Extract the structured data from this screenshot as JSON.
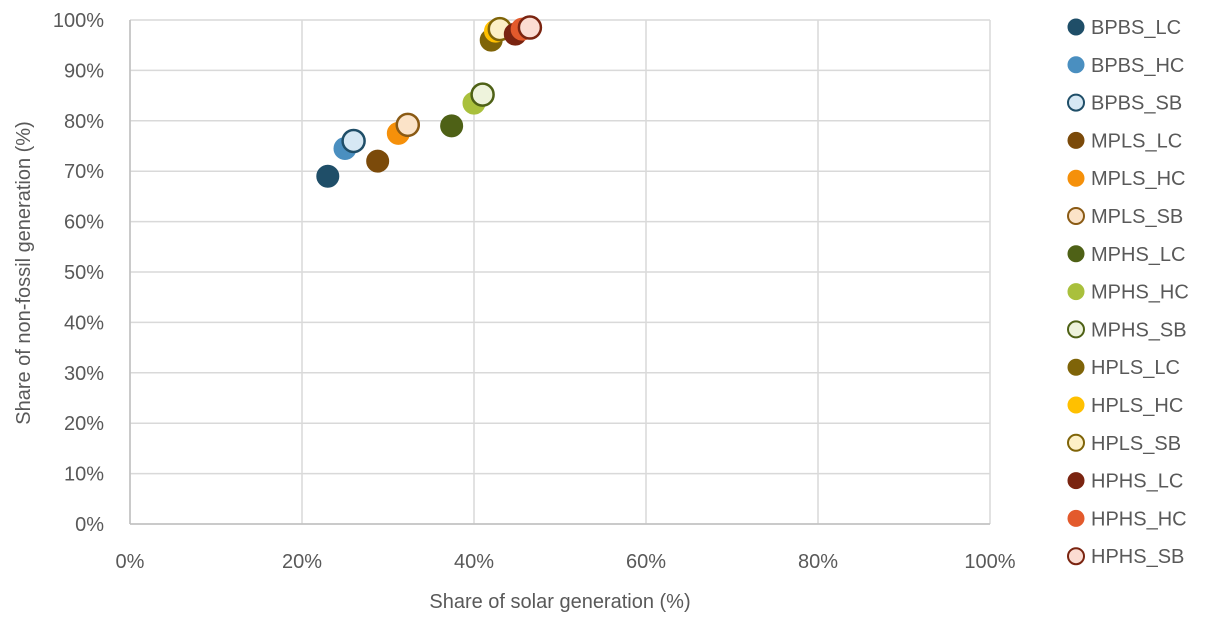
{
  "chart_data": {
    "type": "scatter",
    "title": "",
    "xlabel": "Share of solar generation (%)",
    "ylabel": "Share of non-fossil generation (%)",
    "xlim": [
      0,
      100
    ],
    "ylim": [
      0,
      100
    ],
    "x_ticks": [
      "0%",
      "20%",
      "40%",
      "60%",
      "80%",
      "100%"
    ],
    "y_ticks": [
      "0%",
      "10%",
      "20%",
      "30%",
      "40%",
      "50%",
      "60%",
      "70%",
      "80%",
      "90%",
      "100%"
    ],
    "grid": true,
    "legend_position": "right",
    "series": [
      {
        "name": "BPBS_LC",
        "x": 23.0,
        "y": 69.0,
        "color": "#1f4e68",
        "hollow": false
      },
      {
        "name": "BPBS_HC",
        "x": 25.0,
        "y": 74.5,
        "color": "#4a8fc0",
        "hollow": false
      },
      {
        "name": "BPBS_SB",
        "x": 26.0,
        "y": 76.0,
        "color": "#1f4e68",
        "fill": "#d6e8f4",
        "hollow": true
      },
      {
        "name": "MPLS_LC",
        "x": 28.8,
        "y": 72.0,
        "color": "#7b4a0a",
        "hollow": false
      },
      {
        "name": "MPLS_HC",
        "x": 31.2,
        "y": 77.5,
        "color": "#f5900a",
        "hollow": false
      },
      {
        "name": "MPLS_SB",
        "x": 32.3,
        "y": 79.2,
        "color": "#8a5a14",
        "fill": "#fbe3c8",
        "hollow": true
      },
      {
        "name": "MPHS_LC",
        "x": 37.4,
        "y": 79.0,
        "color": "#4e6116",
        "hollow": false
      },
      {
        "name": "MPHS_HC",
        "x": 40.0,
        "y": 83.5,
        "color": "#a9c03c",
        "hollow": false
      },
      {
        "name": "MPHS_SB",
        "x": 41.0,
        "y": 85.2,
        "color": "#4e6116",
        "fill": "#eef3dc",
        "hollow": true
      },
      {
        "name": "HPLS_LC",
        "x": 42.0,
        "y": 96.0,
        "color": "#7f6408",
        "hollow": false
      },
      {
        "name": "HPLS_HC",
        "x": 42.5,
        "y": 97.8,
        "color": "#ffc000",
        "hollow": false
      },
      {
        "name": "HPLS_SB",
        "x": 43.0,
        "y": 98.2,
        "color": "#7f6408",
        "fill": "#fdf0c6",
        "hollow": true
      },
      {
        "name": "HPHS_LC",
        "x": 44.8,
        "y": 97.2,
        "color": "#7a2410",
        "hollow": false
      },
      {
        "name": "HPHS_HC",
        "x": 45.6,
        "y": 98.2,
        "color": "#e35a2c",
        "hollow": false
      },
      {
        "name": "HPHS_SB",
        "x": 46.5,
        "y": 98.5,
        "color": "#7a2410",
        "fill": "#fbdcd2",
        "hollow": true
      }
    ]
  }
}
